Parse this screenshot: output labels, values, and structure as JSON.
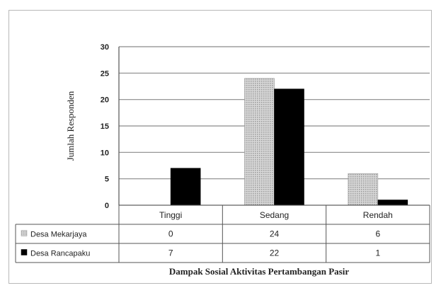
{
  "chart_data": {
    "type": "bar",
    "categories": [
      "Tinggi",
      "Sedang",
      "Rendah"
    ],
    "series": [
      {
        "name": "Desa Mekarjaya",
        "values": [
          0,
          24,
          6
        ],
        "color": "#c9c9c9"
      },
      {
        "name": "Desa Rancapaku",
        "values": [
          7,
          22,
          1
        ],
        "color": "#000000"
      }
    ],
    "ylabel": "Jumlah Responden",
    "xlabel": "Dampak Sosial Aktivitas Pertambangan Pasir",
    "ylim": [
      0,
      30
    ],
    "yticks": [
      0,
      5,
      10,
      15,
      20,
      25,
      30
    ],
    "grid": true,
    "legend": "data-table",
    "table": [
      [
        "0",
        "24",
        "6"
      ],
      [
        "7",
        "22",
        "1"
      ]
    ]
  }
}
